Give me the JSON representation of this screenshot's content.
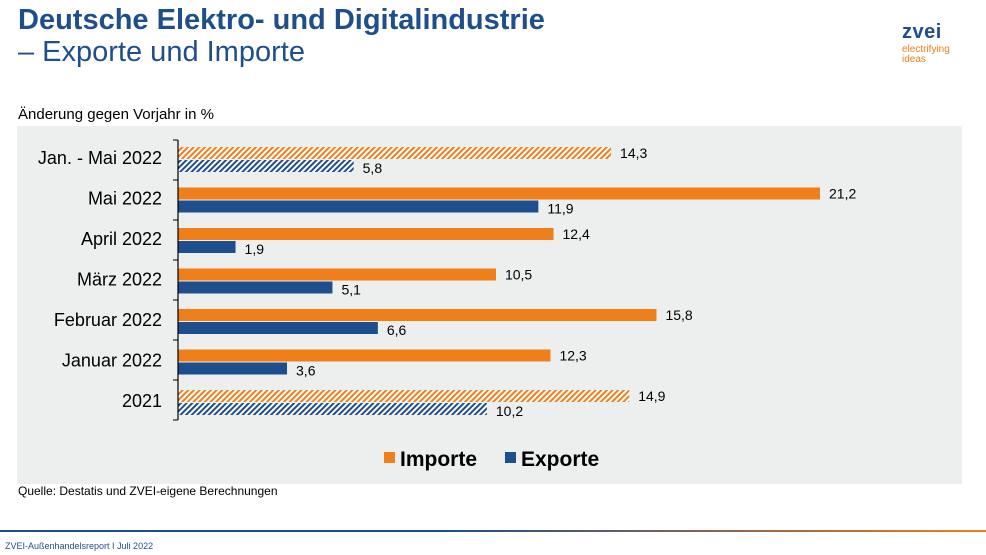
{
  "header": {
    "title_line1": "Deutsche Elektro- und Digitalindustrie",
    "title_line2": "– Exporte und Importe"
  },
  "logo": {
    "name": "zvei",
    "tagline_1": "electrifying",
    "tagline_2": "ideas"
  },
  "colors": {
    "importe": "#ee7f1a",
    "exporte": "#1f4e8c",
    "background": "#edeeee",
    "title": "#1f4e8c"
  },
  "chart_data": {
    "type": "bar",
    "orientation": "horizontal",
    "title": "Änderung gegen Vorjahr in %",
    "xlabel": "",
    "ylabel": "",
    "xlim": [
      0,
      21.2
    ],
    "grid": false,
    "legend_position": "bottom",
    "categories": [
      "Jan. - Mai 2022",
      "Mai 2022",
      "April 2022",
      "März 2022",
      "Februar 2022",
      "Januar 2022",
      "2021"
    ],
    "hatched_categories": [
      "Jan. - Mai 2022",
      "2021"
    ],
    "series": [
      {
        "name": "Importe",
        "values": [
          14.3,
          21.2,
          12.4,
          10.5,
          15.8,
          12.3,
          14.9
        ],
        "labels": [
          "14,3",
          "21,2",
          "12,4",
          "10,5",
          "15,8",
          "12,3",
          "14,9"
        ]
      },
      {
        "name": "Exporte",
        "values": [
          5.8,
          11.9,
          1.9,
          5.1,
          6.6,
          3.6,
          10.2
        ],
        "labels": [
          "5,8",
          "11,9",
          "1,9",
          "5,1",
          "6,6",
          "3,6",
          "10,2"
        ]
      }
    ]
  },
  "source": "Quelle: Destatis und ZVEI-eigene Berechnungen",
  "footer": "ZVEI-Außenhandelsreport I Juli 2022"
}
